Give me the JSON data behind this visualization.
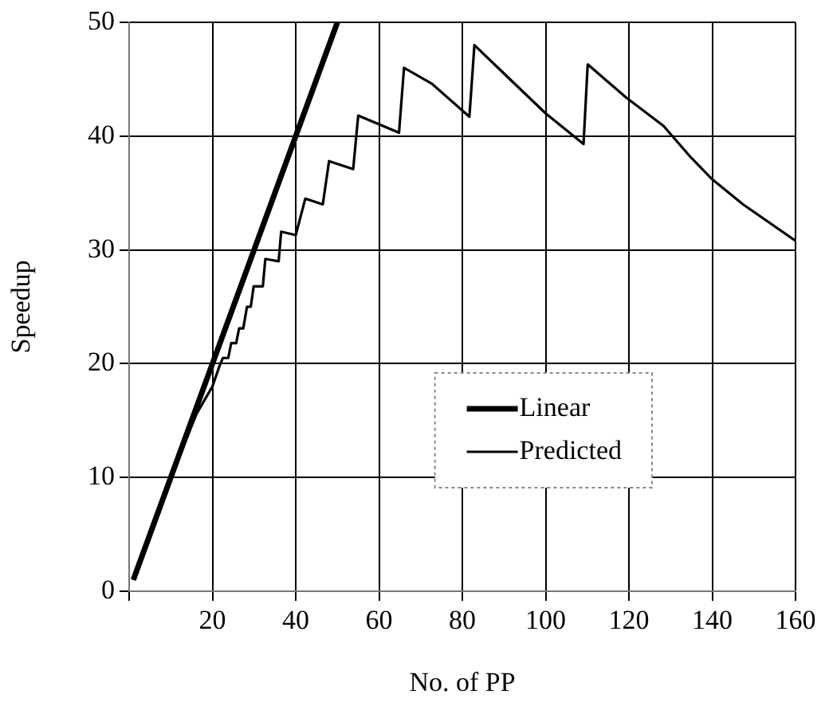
{
  "chart_data": {
    "type": "line",
    "xlabel": "No. of PP",
    "ylabel": "Speedup",
    "xlim": [
      0,
      160
    ],
    "xticks": [
      {
        "value": 0,
        "label": null
      },
      20,
      40,
      60,
      80,
      100,
      120,
      140,
      160
    ],
    "ylim": [
      0,
      50
    ],
    "yticks": [
      0,
      10,
      20,
      30,
      40,
      50
    ],
    "grid": true,
    "legend": "bottom right",
    "marker": "none",
    "line_style": "solid",
    "series": [
      {
        "name": "Linear",
        "color": "#000000",
        "x": [
          1,
          50
        ],
        "values": [
          1,
          50
        ]
      },
      {
        "name": "Predicted",
        "color": "#000000",
        "x": [
          1,
          10,
          16.2,
          20,
          21.7,
          22.5,
          23.8,
          24.5,
          25.7,
          26.4,
          27.4,
          28.3,
          29.2,
          29.9,
          32.1,
          32.7,
          35.9,
          36.5,
          40,
          42.3,
          46.5,
          48,
          53.8,
          55,
          64.8,
          66,
          72.7,
          81.7,
          82.9,
          90,
          100,
          109.1,
          110.1,
          119.3,
          128.3,
          134.7,
          140,
          147.4,
          160
        ],
        "values": [
          1,
          10,
          15.6,
          18,
          19.8,
          20.5,
          20.5,
          21.8,
          21.8,
          23.1,
          23.1,
          25,
          25,
          26.8,
          26.8,
          29.2,
          29,
          31.6,
          31.3,
          34.5,
          34,
          37.8,
          37.1,
          41.8,
          40.3,
          46,
          44.6,
          41.7,
          48,
          45.5,
          42,
          39.3,
          46.3,
          43.4,
          40.9,
          38.2,
          36.2,
          34,
          30.8
        ]
      }
    ]
  }
}
